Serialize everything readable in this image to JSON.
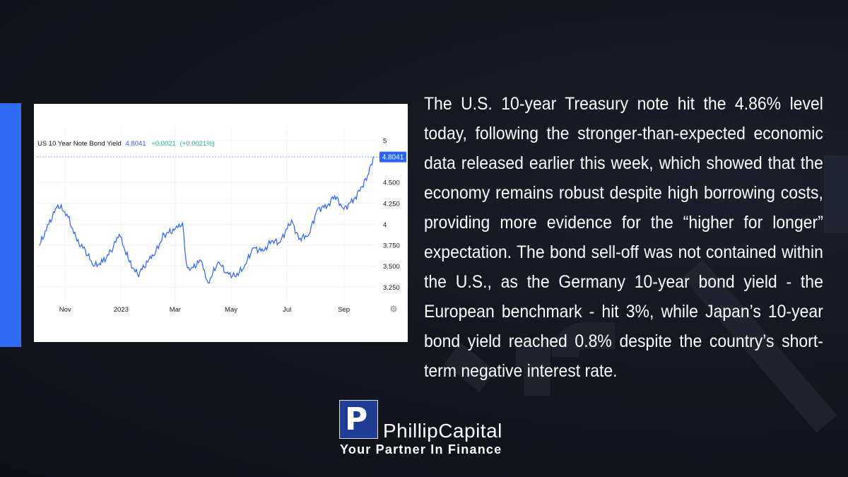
{
  "chart_data": {
    "type": "line",
    "legend": {
      "symbol": "US 10 Year Note Bond Yield",
      "last_value": "4.8041",
      "change": "+0.0021",
      "change_pct": "(+0.0021%)"
    },
    "x_tick_labels": [
      "Nov",
      "2023",
      "Mar",
      "May",
      "Jul",
      "Sep"
    ],
    "y_tick_labels": [
      "5",
      "4.500",
      "4.250",
      "4",
      "3.750",
      "3.500",
      "3.250"
    ],
    "ylim": [
      3.05,
      5.1
    ],
    "current_marker": "4.8041",
    "grid": true,
    "line_color": "#2962ff",
    "series": [
      {
        "x": [
          "2022-10-04",
          "2022-10-14",
          "2022-10-24",
          "2022-11-03",
          "2022-11-14",
          "2022-11-23",
          "2022-12-02",
          "2022-12-12",
          "2022-12-21",
          "2022-12-30",
          "2023-01-10",
          "2023-01-19",
          "2023-01-30",
          "2023-02-08",
          "2023-02-17",
          "2023-02-28",
          "2023-03-09",
          "2023-03-13",
          "2023-03-17",
          "2023-03-29",
          "2023-04-06",
          "2023-04-17",
          "2023-04-26",
          "2023-05-05",
          "2023-05-15",
          "2023-05-25",
          "2023-06-05",
          "2023-06-14",
          "2023-06-23",
          "2023-07-06",
          "2023-07-14",
          "2023-07-25",
          "2023-08-03",
          "2023-08-14",
          "2023-08-22",
          "2023-09-01",
          "2023-09-12",
          "2023-09-21",
          "2023-09-28",
          "2023-10-03",
          "2023-10-04"
        ],
        "values": [
          3.75,
          4.0,
          4.23,
          4.12,
          3.8,
          3.69,
          3.5,
          3.55,
          3.68,
          3.88,
          3.55,
          3.4,
          3.55,
          3.68,
          3.88,
          3.93,
          4.02,
          3.55,
          3.45,
          3.57,
          3.3,
          3.55,
          3.42,
          3.38,
          3.48,
          3.72,
          3.68,
          3.8,
          3.78,
          4.05,
          3.82,
          3.88,
          4.18,
          4.22,
          4.34,
          4.18,
          4.3,
          4.45,
          4.6,
          4.8,
          4.8041
        ]
      }
    ]
  },
  "article": {
    "paragraph": "The U.S. 10-year Treasury note hit the 4.86% level today, following the stronger-than-expected economic data released earlier this week, which showed that the economy remains robust despite high borrowing costs, providing more evidence for the “higher for longer” expectation. The bond sell-off was not contained within the U.S., as the Germany 10-year bond yield - the European benchmark - hit 3%, while Japan’s 10-year bond yield reached 0.8% despite the country’s short-term negative interest rate."
  },
  "brand": {
    "name": "PhillipCapital",
    "tagline": "Your Partner In Finance",
    "logo_letter": "P"
  },
  "colors": {
    "accent": "#2f6df6",
    "background": "#14161f",
    "up_change": "#26a69a",
    "logo_blue": "#1e3e96"
  }
}
